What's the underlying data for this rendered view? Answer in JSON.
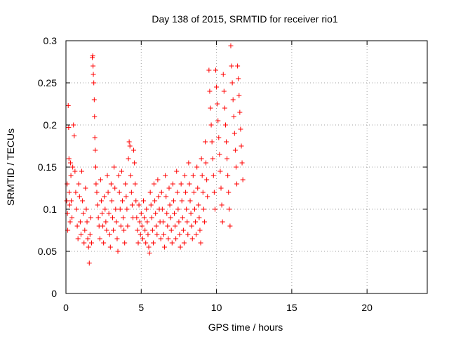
{
  "chart_data": {
    "type": "scatter",
    "title": "Day 138 of 2015, SRMTID for receiver rio1",
    "xlabel": "GPS time / hours",
    "ylabel": "SRMTID / TECUs",
    "xlim": [
      0,
      24
    ],
    "ylim": [
      0,
      0.3
    ],
    "xticks": [
      "0",
      "5",
      "10",
      "15",
      "20"
    ],
    "yticks": [
      "0",
      "0.05",
      "0.1",
      "0.15",
      "0.2",
      "0.25",
      "0.3"
    ],
    "grid": true,
    "marker": "+",
    "color": "#ff0000",
    "series": [
      {
        "points": [
          [
            0.05,
            0.11
          ],
          [
            0.08,
            0.13
          ],
          [
            0.1,
            0.095
          ],
          [
            0.12,
            0.075
          ],
          [
            0.15,
            0.223
          ],
          [
            0.18,
            0.197
          ],
          [
            0.2,
            0.16
          ],
          [
            0.22,
            0.12
          ],
          [
            0.25,
            0.105
          ],
          [
            0.28,
            0.085
          ],
          [
            0.3,
            0.155
          ],
          [
            0.33,
            0.14
          ],
          [
            0.35,
            0.11
          ],
          [
            0.4,
            0.09
          ],
          [
            0.45,
            0.15
          ],
          [
            0.5,
            0.2
          ],
          [
            0.55,
            0.187
          ],
          [
            0.6,
            0.145
          ],
          [
            0.65,
            0.12
          ],
          [
            0.7,
            0.1
          ],
          [
            0.75,
            0.08
          ],
          [
            0.8,
            0.065
          ],
          [
            0.85,
            0.13
          ],
          [
            0.9,
            0.115
          ],
          [
            0.95,
            0.085
          ],
          [
            1.0,
            0.07
          ],
          [
            1.05,
            0.145
          ],
          [
            1.1,
            0.11
          ],
          [
            1.15,
            0.095
          ],
          [
            1.2,
            0.06
          ],
          [
            1.25,
            0.075
          ],
          [
            1.3,
            0.125
          ],
          [
            1.35,
            0.1
          ],
          [
            1.4,
            0.085
          ],
          [
            1.45,
            0.065
          ],
          [
            1.5,
            0.055
          ],
          [
            1.55,
            0.036
          ],
          [
            1.6,
            0.07
          ],
          [
            1.65,
            0.09
          ],
          [
            1.7,
            0.06
          ],
          [
            1.75,
            0.28
          ],
          [
            1.78,
            0.282
          ],
          [
            1.8,
            0.27
          ],
          [
            1.82,
            0.26
          ],
          [
            1.85,
            0.25
          ],
          [
            1.88,
            0.23
          ],
          [
            1.9,
            0.21
          ],
          [
            1.92,
            0.185
          ],
          [
            1.95,
            0.17
          ],
          [
            1.98,
            0.15
          ],
          [
            2.0,
            0.13
          ],
          [
            2.05,
            0.12
          ],
          [
            2.1,
            0.105
          ],
          [
            2.15,
            0.09
          ],
          [
            2.2,
            0.08
          ],
          [
            2.25,
            0.065
          ],
          [
            2.3,
            0.135
          ],
          [
            2.35,
            0.11
          ],
          [
            2.4,
            0.095
          ],
          [
            2.45,
            0.08
          ],
          [
            2.5,
            0.06
          ],
          [
            2.55,
            0.115
          ],
          [
            2.6,
            0.1
          ],
          [
            2.65,
            0.085
          ],
          [
            2.7,
            0.075
          ],
          [
            2.75,
            0.14
          ],
          [
            2.8,
            0.12
          ],
          [
            2.85,
            0.095
          ],
          [
            2.9,
            0.07
          ],
          [
            2.95,
            0.055
          ],
          [
            3.0,
            0.13
          ],
          [
            3.05,
            0.11
          ],
          [
            3.1,
            0.09
          ],
          [
            3.15,
            0.075
          ],
          [
            3.2,
            0.15
          ],
          [
            3.25,
            0.125
          ],
          [
            3.3,
            0.1
          ],
          [
            3.35,
            0.085
          ],
          [
            3.4,
            0.065
          ],
          [
            3.45,
            0.05
          ],
          [
            3.5,
            0.14
          ],
          [
            3.55,
            0.12
          ],
          [
            3.6,
            0.1
          ],
          [
            3.65,
            0.08
          ],
          [
            3.7,
            0.145
          ],
          [
            3.75,
            0.11
          ],
          [
            3.8,
            0.09
          ],
          [
            3.85,
            0.075
          ],
          [
            3.9,
            0.06
          ],
          [
            3.95,
            0.13
          ],
          [
            4.0,
            0.115
          ],
          [
            4.05,
            0.1
          ],
          [
            4.1,
            0.08
          ],
          [
            4.15,
            0.16
          ],
          [
            4.2,
            0.18
          ],
          [
            4.25,
            0.175
          ],
          [
            4.3,
            0.14
          ],
          [
            4.35,
            0.12
          ],
          [
            4.4,
            0.105
          ],
          [
            4.45,
            0.09
          ],
          [
            4.5,
            0.17
          ],
          [
            4.55,
            0.155
          ],
          [
            4.6,
            0.13
          ],
          [
            4.65,
            0.11
          ],
          [
            4.7,
            0.09
          ],
          [
            4.75,
            0.075
          ],
          [
            4.8,
            0.06
          ],
          [
            4.85,
            0.105
          ],
          [
            4.9,
            0.085
          ],
          [
            4.95,
            0.07
          ],
          [
            5.0,
            0.095
          ],
          [
            5.05,
            0.08
          ],
          [
            5.1,
            0.065
          ],
          [
            5.15,
            0.11
          ],
          [
            5.2,
            0.09
          ],
          [
            5.25,
            0.075
          ],
          [
            5.3,
            0.06
          ],
          [
            5.35,
            0.1
          ],
          [
            5.4,
            0.085
          ],
          [
            5.45,
            0.07
          ],
          [
            5.5,
            0.055
          ],
          [
            5.55,
            0.048
          ],
          [
            5.6,
            0.12
          ],
          [
            5.65,
            0.105
          ],
          [
            5.7,
            0.09
          ],
          [
            5.75,
            0.075
          ],
          [
            5.8,
            0.06
          ],
          [
            5.85,
            0.13
          ],
          [
            5.9,
            0.11
          ],
          [
            5.95,
            0.095
          ],
          [
            6.0,
            0.08
          ],
          [
            6.05,
            0.07
          ],
          [
            6.1,
            0.135
          ],
          [
            6.15,
            0.115
          ],
          [
            6.2,
            0.1
          ],
          [
            6.25,
            0.085
          ],
          [
            6.3,
            0.065
          ],
          [
            6.35,
            0.12
          ],
          [
            6.4,
            0.1
          ],
          [
            6.45,
            0.085
          ],
          [
            6.5,
            0.07
          ],
          [
            6.55,
            0.055
          ],
          [
            6.6,
            0.14
          ],
          [
            6.65,
            0.115
          ],
          [
            6.7,
            0.095
          ],
          [
            6.75,
            0.08
          ],
          [
            6.8,
            0.065
          ],
          [
            6.85,
            0.125
          ],
          [
            6.9,
            0.105
          ],
          [
            6.95,
            0.09
          ],
          [
            7.0,
            0.075
          ],
          [
            7.05,
            0.06
          ],
          [
            7.1,
            0.13
          ],
          [
            7.15,
            0.11
          ],
          [
            7.2,
            0.095
          ],
          [
            7.25,
            0.08
          ],
          [
            7.3,
            0.065
          ],
          [
            7.35,
            0.145
          ],
          [
            7.4,
            0.12
          ],
          [
            7.45,
            0.1
          ],
          [
            7.5,
            0.085
          ],
          [
            7.55,
            0.07
          ],
          [
            7.6,
            0.055
          ],
          [
            7.65,
            0.13
          ],
          [
            7.7,
            0.11
          ],
          [
            7.75,
            0.09
          ],
          [
            7.8,
            0.075
          ],
          [
            7.85,
            0.06
          ],
          [
            7.9,
            0.14
          ],
          [
            7.95,
            0.12
          ],
          [
            8.0,
            0.1
          ],
          [
            8.05,
            0.085
          ],
          [
            8.1,
            0.07
          ],
          [
            8.15,
            0.155
          ],
          [
            8.2,
            0.13
          ],
          [
            8.25,
            0.11
          ],
          [
            8.3,
            0.095
          ],
          [
            8.35,
            0.08
          ],
          [
            8.4,
            0.065
          ],
          [
            8.45,
            0.14
          ],
          [
            8.5,
            0.12
          ],
          [
            8.55,
            0.1
          ],
          [
            8.6,
            0.085
          ],
          [
            8.65,
            0.07
          ],
          [
            8.7,
            0.15
          ],
          [
            8.75,
            0.125
          ],
          [
            8.8,
            0.105
          ],
          [
            8.85,
            0.09
          ],
          [
            8.9,
            0.075
          ],
          [
            8.95,
            0.06
          ],
          [
            9.0,
            0.16
          ],
          [
            9.05,
            0.14
          ],
          [
            9.1,
            0.12
          ],
          [
            9.15,
            0.1
          ],
          [
            9.2,
            0.085
          ],
          [
            9.25,
            0.18
          ],
          [
            9.3,
            0.155
          ],
          [
            9.35,
            0.135
          ],
          [
            9.4,
            0.115
          ],
          [
            9.5,
            0.265
          ],
          [
            9.55,
            0.24
          ],
          [
            9.6,
            0.22
          ],
          [
            9.65,
            0.2
          ],
          [
            9.7,
            0.18
          ],
          [
            9.75,
            0.16
          ],
          [
            9.8,
            0.14
          ],
          [
            9.85,
            0.12
          ],
          [
            9.9,
            0.1
          ],
          [
            9.95,
            0.265
          ],
          [
            10.0,
            0.245
          ],
          [
            10.05,
            0.225
          ],
          [
            10.1,
            0.205
          ],
          [
            10.15,
            0.185
          ],
          [
            10.2,
            0.165
          ],
          [
            10.25,
            0.145
          ],
          [
            10.3,
            0.125
          ],
          [
            10.35,
            0.105
          ],
          [
            10.4,
            0.085
          ],
          [
            10.45,
            0.26
          ],
          [
            10.5,
            0.24
          ],
          [
            10.55,
            0.22
          ],
          [
            10.6,
            0.2
          ],
          [
            10.65,
            0.18
          ],
          [
            10.7,
            0.16
          ],
          [
            10.75,
            0.14
          ],
          [
            10.8,
            0.12
          ],
          [
            10.85,
            0.1
          ],
          [
            10.9,
            0.08
          ],
          [
            10.95,
            0.294
          ],
          [
            11.0,
            0.27
          ],
          [
            11.05,
            0.25
          ],
          [
            11.1,
            0.23
          ],
          [
            11.15,
            0.21
          ],
          [
            11.2,
            0.19
          ],
          [
            11.25,
            0.17
          ],
          [
            11.3,
            0.15
          ],
          [
            11.35,
            0.13
          ],
          [
            11.4,
            0.27
          ],
          [
            11.45,
            0.255
          ],
          [
            11.5,
            0.235
          ],
          [
            11.55,
            0.215
          ],
          [
            11.6,
            0.195
          ],
          [
            11.65,
            0.175
          ],
          [
            11.7,
            0.155
          ],
          [
            11.75,
            0.135
          ]
        ]
      }
    ]
  }
}
